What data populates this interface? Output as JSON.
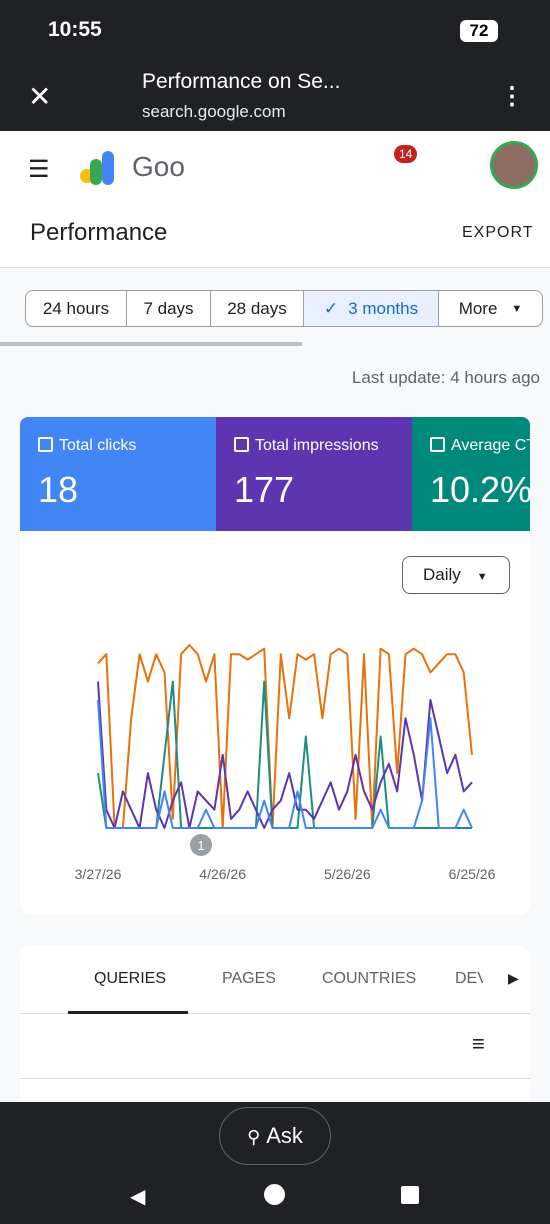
{
  "status_bar": {
    "time": "10:55",
    "battery": "72"
  },
  "browser": {
    "title": "Performance on Se...",
    "url": "search.google.com"
  },
  "app_bar": {
    "logo_text": "Goo",
    "notifications": "14"
  },
  "header": {
    "title": "Performance",
    "export": "EXPORT"
  },
  "range_tabs": [
    "24 hours",
    "7 days",
    "28 days",
    "3 months",
    "More"
  ],
  "last_update": "Last update: 4 hours ago",
  "metrics": [
    {
      "label": "Total clicks",
      "value": "18"
    },
    {
      "label": "Total impressions",
      "value": "177"
    },
    {
      "label": "Average CT",
      "value": "10.2%"
    }
  ],
  "chart_data": {
    "type": "line",
    "granularity": "Daily",
    "annotation": "1",
    "categories": [
      "3/27/26",
      null,
      null,
      null,
      null,
      null,
      null,
      null,
      null,
      null,
      null,
      null,
      null,
      null,
      null,
      "4/26/26",
      null,
      null,
      null,
      null,
      null,
      null,
      null,
      null,
      null,
      null,
      null,
      null,
      null,
      null,
      "5/26/26",
      null,
      null,
      null,
      null,
      null,
      null,
      null,
      null,
      null,
      null,
      null,
      null,
      null,
      null,
      "6/25/26"
    ],
    "ylim": [
      0,
      100
    ],
    "series": [
      {
        "color": "#e8710a",
        "values": [
          90,
          95,
          0,
          0,
          60,
          95,
          80,
          95,
          85,
          5,
          95,
          100,
          95,
          80,
          95,
          0,
          95,
          95,
          92,
          95,
          98,
          0,
          95,
          60,
          95,
          92,
          95,
          60,
          95,
          98,
          95,
          5,
          95,
          0,
          98,
          95,
          30,
          95,
          98,
          95,
          85,
          90,
          95,
          95,
          85,
          40
        ]
      },
      {
        "color": "#1e8e7e",
        "values": [
          30,
          0,
          0,
          0,
          0,
          0,
          0,
          0,
          40,
          80,
          0,
          0,
          0,
          0,
          0,
          0,
          0,
          0,
          0,
          0,
          80,
          0,
          0,
          0,
          0,
          50,
          0,
          0,
          0,
          0,
          0,
          0,
          0,
          0,
          50,
          0,
          0,
          0,
          0,
          0,
          0,
          0,
          0,
          0,
          0,
          0
        ]
      },
      {
        "color": "#5e35b1",
        "values": [
          80,
          10,
          0,
          20,
          10,
          0,
          30,
          10,
          0,
          15,
          25,
          0,
          20,
          15,
          10,
          40,
          5,
          10,
          20,
          10,
          0,
          10,
          15,
          30,
          10,
          10,
          5,
          15,
          25,
          10,
          20,
          40,
          20,
          10,
          25,
          35,
          20,
          60,
          40,
          15,
          70,
          50,
          30,
          40,
          20,
          25
        ]
      },
      {
        "color": "#4285f4",
        "values": [
          70,
          0,
          0,
          0,
          0,
          0,
          0,
          0,
          20,
          0,
          0,
          0,
          0,
          10,
          0,
          0,
          0,
          0,
          0,
          0,
          15,
          0,
          0,
          0,
          20,
          0,
          0,
          0,
          0,
          0,
          0,
          0,
          0,
          0,
          10,
          0,
          0,
          0,
          0,
          15,
          60,
          0,
          0,
          0,
          10,
          0
        ]
      }
    ]
  },
  "result_tabs": [
    "QUERIES",
    "PAGES",
    "COUNTRIES",
    "DEV"
  ],
  "ask": "Ask"
}
